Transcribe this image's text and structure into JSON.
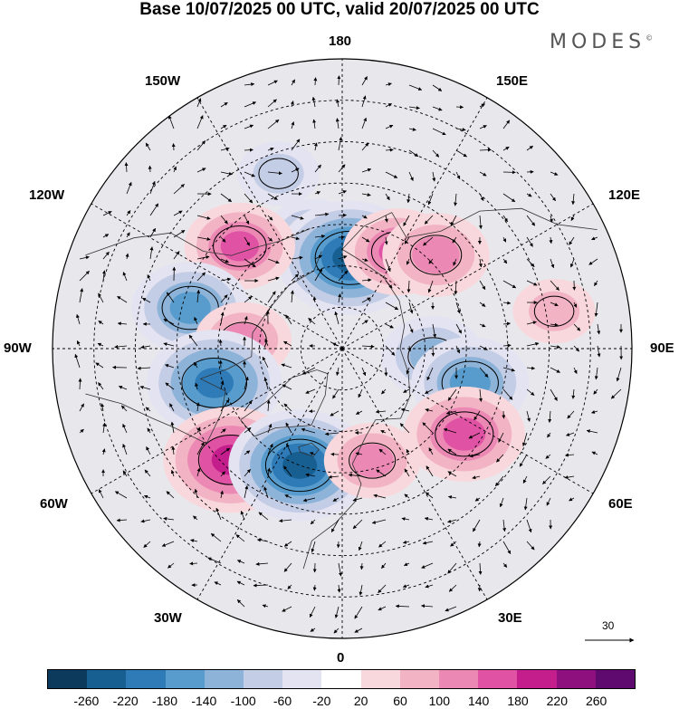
{
  "title": "Base 10/07/2025 00 UTC, valid 20/07/2025 00 UTC",
  "brand": "MODES",
  "brand_mark": "©",
  "longitude_labels": {
    "top": "180",
    "bottom": "0",
    "left": "90W",
    "right": "90E",
    "upper_left_1": "150W",
    "upper_left_2": "120W",
    "upper_right_1": "150E",
    "upper_right_2": "120E",
    "lower_left_1": "60W",
    "lower_left_2": "30W",
    "lower_right_1": "60E",
    "lower_right_2": "30E"
  },
  "vector_scale": {
    "label": "30"
  },
  "colorbar": {
    "labels": [
      "-260",
      "-220",
      "-180",
      "-140",
      "-100",
      "-60",
      "-20",
      "20",
      "60",
      "100",
      "140",
      "180",
      "220",
      "260"
    ],
    "colors": [
      "#0c3a5c",
      "#185f91",
      "#2e7bb8",
      "#579ccc",
      "#8db3d9",
      "#c4cde6",
      "#e4e3f1",
      "#ffffff",
      "#f8d8dc",
      "#f2b4c4",
      "#ec88b4",
      "#e052a4",
      "#c41e8c",
      "#8e0f7e",
      "#5e0a6e"
    ]
  },
  "anomalies": [
    {
      "name": "aleutian-low-1",
      "lon": -165,
      "lat": 62,
      "value": -120
    },
    {
      "name": "bering-low",
      "lon": 175,
      "lat": 68,
      "value": -260
    },
    {
      "name": "siberia-high-east",
      "lon": 150,
      "lat": 63,
      "value": 160
    },
    {
      "name": "siberia-high-mid",
      "lon": 135,
      "lat": 58,
      "value": 150
    },
    {
      "name": "alaska-high",
      "lon": -135,
      "lat": 55,
      "value": 160
    },
    {
      "name": "canada-low",
      "lon": -105,
      "lat": 52,
      "value": -180
    },
    {
      "name": "hudson-high",
      "lon": -95,
      "lat": 66,
      "value": 120
    },
    {
      "name": "labrador-low",
      "lon": -75,
      "lat": 58,
      "value": -230
    },
    {
      "name": "atlantic-high",
      "lon": -45,
      "lat": 52,
      "value": 230
    },
    {
      "name": "greenland-low",
      "lon": -20,
      "lat": 60,
      "value": -250
    },
    {
      "name": "scandinavia-high",
      "lon": 15,
      "lat": 62,
      "value": 120
    },
    {
      "name": "west-siberia-low-1",
      "lon": 85,
      "lat": 68,
      "value": -140
    },
    {
      "name": "west-siberia-low-2",
      "lon": 75,
      "lat": 58,
      "value": -180
    },
    {
      "name": "kazakh-high",
      "lon": 55,
      "lat": 54,
      "value": 190
    },
    {
      "name": "east-asia-high",
      "lon": 100,
      "lat": 38,
      "value": 80
    },
    {
      "name": "pacific-low",
      "lon": -160,
      "lat": 45,
      "value": -80
    }
  ]
}
